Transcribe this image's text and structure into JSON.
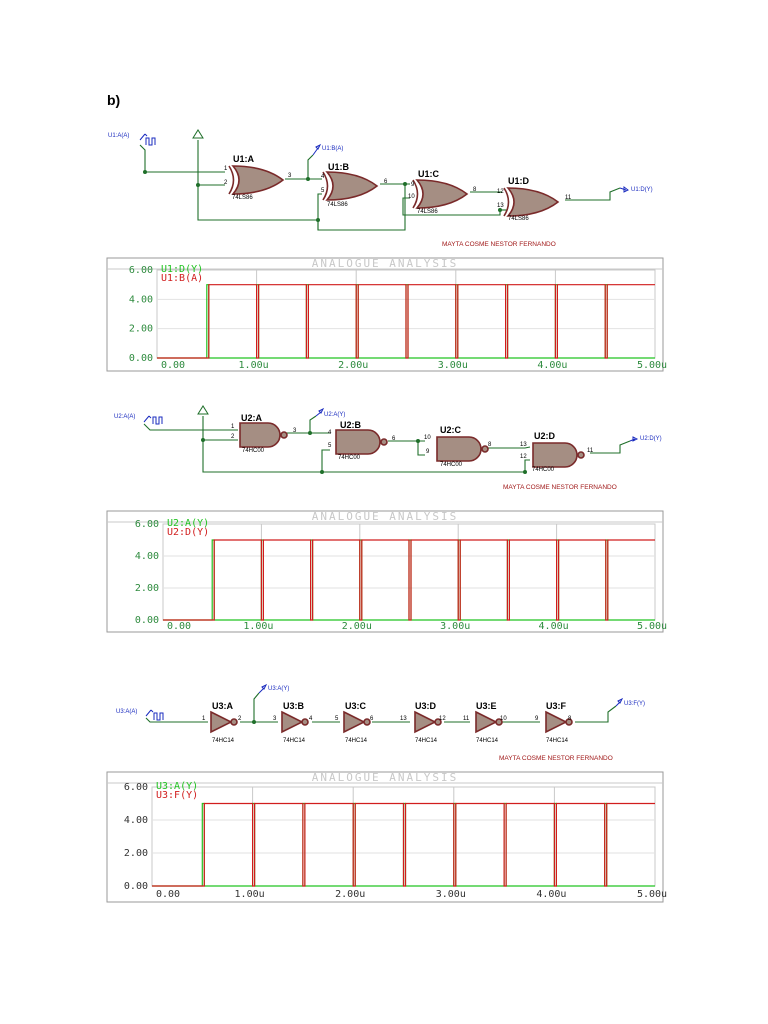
{
  "section_title": "b)",
  "colors": {
    "wire": "#1f6f2a",
    "gate_fill": "#a58e83",
    "gate_stroke": "#7a2a2a",
    "probe": "#1a2bbf",
    "author": "#a01818",
    "trace_green": "#22c322",
    "trace_red": "#d11d1d",
    "grid": "#c8c8c8"
  },
  "circuits": [
    {
      "source_label": "U1:A(A)",
      "probe_mid_label": "U1:B(A)",
      "probe_out_label": "U1:D(Y)",
      "author": "MAYTA COSME NESTOR FERNANDO",
      "gates": [
        {
          "ref": "U1:A",
          "part": "74LS86",
          "pins": [
            "1",
            "2",
            "3"
          ]
        },
        {
          "ref": "U1:B",
          "part": "74LS86",
          "pins": [
            "4",
            "5",
            "6"
          ]
        },
        {
          "ref": "U1:C",
          "part": "74LS86",
          "pins": [
            "9",
            "10",
            "8"
          ]
        },
        {
          "ref": "U1:D",
          "part": "74LS86",
          "pins": [
            "12",
            "13",
            "11"
          ]
        }
      ]
    },
    {
      "source_label": "U2:A(A)",
      "probe_mid_label": "U2:A(Y)",
      "probe_out_label": "U2:D(Y)",
      "author": "MAYTA COSME NESTOR FERNANDO",
      "gates": [
        {
          "ref": "U2:A",
          "part": "74HC00",
          "pins": [
            "1",
            "2",
            "3"
          ]
        },
        {
          "ref": "U2:B",
          "part": "74HC00",
          "pins": [
            "4",
            "5",
            "6"
          ]
        },
        {
          "ref": "U2:C",
          "part": "74HC00",
          "pins": [
            "10",
            "9",
            "8"
          ]
        },
        {
          "ref": "U2:D",
          "part": "74HC00",
          "pins": [
            "13",
            "12",
            "11"
          ]
        }
      ]
    },
    {
      "source_label": "U3:A(A)",
      "probe_mid_label": "U3:A(Y)",
      "probe_out_label": "U3:F(Y)",
      "author": "MAYTA COSME NESTOR FERNANDO",
      "gates": [
        {
          "ref": "U3:A",
          "part": "74HC14",
          "pins": [
            "1",
            "2"
          ]
        },
        {
          "ref": "U3:B",
          "part": "74HC14",
          "pins": [
            "3",
            "4"
          ]
        },
        {
          "ref": "U3:C",
          "part": "74HC14",
          "pins": [
            "5",
            "6"
          ]
        },
        {
          "ref": "U3:D",
          "part": "74HC14",
          "pins": [
            "13",
            "12"
          ]
        },
        {
          "ref": "U3:E",
          "part": "74HC14",
          "pins": [
            "11",
            "10"
          ]
        },
        {
          "ref": "U3:F",
          "part": "74HC14",
          "pins": [
            "9",
            "8"
          ]
        }
      ]
    }
  ],
  "chart_data": [
    {
      "type": "line",
      "title": "ANALOGUE ANALYSIS",
      "x_ticks": [
        "0.00",
        "1.00u",
        "2.00u",
        "3.00u",
        "4.00u",
        "5.00u"
      ],
      "y_ticks": [
        "0.00",
        "2.00",
        "4.00",
        "6.00"
      ],
      "xlim": [
        0,
        5
      ],
      "ylim": [
        0,
        6
      ],
      "x_unit": "u",
      "grid": true,
      "legend_position": "top-left",
      "series": [
        {
          "name": "U1:D(Y)",
          "color": "#22c322",
          "high": 5,
          "low": 0,
          "edges": [
            0.5,
            0.52,
            1.0,
            1.02,
            1.5,
            1.52,
            2.0,
            2.02,
            2.5,
            2.52,
            3.0,
            3.02,
            3.5,
            3.52,
            4.0,
            4.02,
            4.5,
            4.52
          ]
        },
        {
          "name": "U1:B(A)",
          "color": "#d11d1d",
          "high": 5,
          "low": 0,
          "edges": [
            0.52,
            1.0,
            1.02,
            1.5,
            1.52,
            2.0,
            2.02,
            2.5,
            2.52,
            3.0,
            3.02,
            3.5,
            3.52,
            4.0,
            4.02,
            4.5,
            4.52
          ]
        }
      ]
    },
    {
      "type": "line",
      "title": "ANALOGUE ANALYSIS",
      "x_ticks": [
        "0.00",
        "1.00u",
        "2.00u",
        "3.00u",
        "4.00u",
        "5.00u"
      ],
      "y_ticks": [
        "0.00",
        "2.00",
        "4.00",
        "6.00"
      ],
      "xlim": [
        0,
        5
      ],
      "ylim": [
        0,
        6
      ],
      "x_unit": "u",
      "grid": true,
      "legend_position": "top-left",
      "series": [
        {
          "name": "U2:A(Y)",
          "color": "#22c322",
          "high": 5,
          "low": 0,
          "edges": [
            0.5,
            0.52,
            1.0,
            1.02,
            1.5,
            1.52,
            2.0,
            2.02,
            2.5,
            2.52,
            3.0,
            3.02,
            3.5,
            3.52,
            4.0,
            4.02,
            4.5,
            4.52
          ]
        },
        {
          "name": "U2:D(Y)",
          "color": "#d11d1d",
          "high": 5,
          "low": 0,
          "edges": [
            0.52,
            1.0,
            1.02,
            1.5,
            1.52,
            2.0,
            2.02,
            2.5,
            2.52,
            3.0,
            3.02,
            3.5,
            3.52,
            4.0,
            4.02,
            4.5,
            4.52
          ]
        }
      ]
    },
    {
      "type": "line",
      "title": "ANALOGUE ANALYSIS",
      "x_ticks": [
        "0.00",
        "1.00u",
        "2.00u",
        "3.00u",
        "4.00u",
        "5.00u"
      ],
      "y_ticks": [
        "0.00",
        "2.00",
        "4.00",
        "6.00"
      ],
      "xlim": [
        0,
        5
      ],
      "ylim": [
        0,
        6
      ],
      "x_unit": "u",
      "grid": true,
      "legend_position": "top-left",
      "series": [
        {
          "name": "U3:A(Y)",
          "color": "#22c322",
          "high": 5,
          "low": 0,
          "edges": [
            0.5,
            0.52,
            1.0,
            1.02,
            1.5,
            1.52,
            2.0,
            2.02,
            2.5,
            2.52,
            3.0,
            3.02,
            3.5,
            3.52,
            4.0,
            4.02,
            4.5,
            4.52
          ]
        },
        {
          "name": "U3:F(Y)",
          "color": "#d11d1d",
          "high": 5,
          "low": 0,
          "edges": [
            0.52,
            1.0,
            1.02,
            1.5,
            1.52,
            2.0,
            2.02,
            2.5,
            2.52,
            3.0,
            3.02,
            3.5,
            3.52,
            4.0,
            4.02,
            4.5,
            4.52
          ]
        }
      ]
    }
  ]
}
